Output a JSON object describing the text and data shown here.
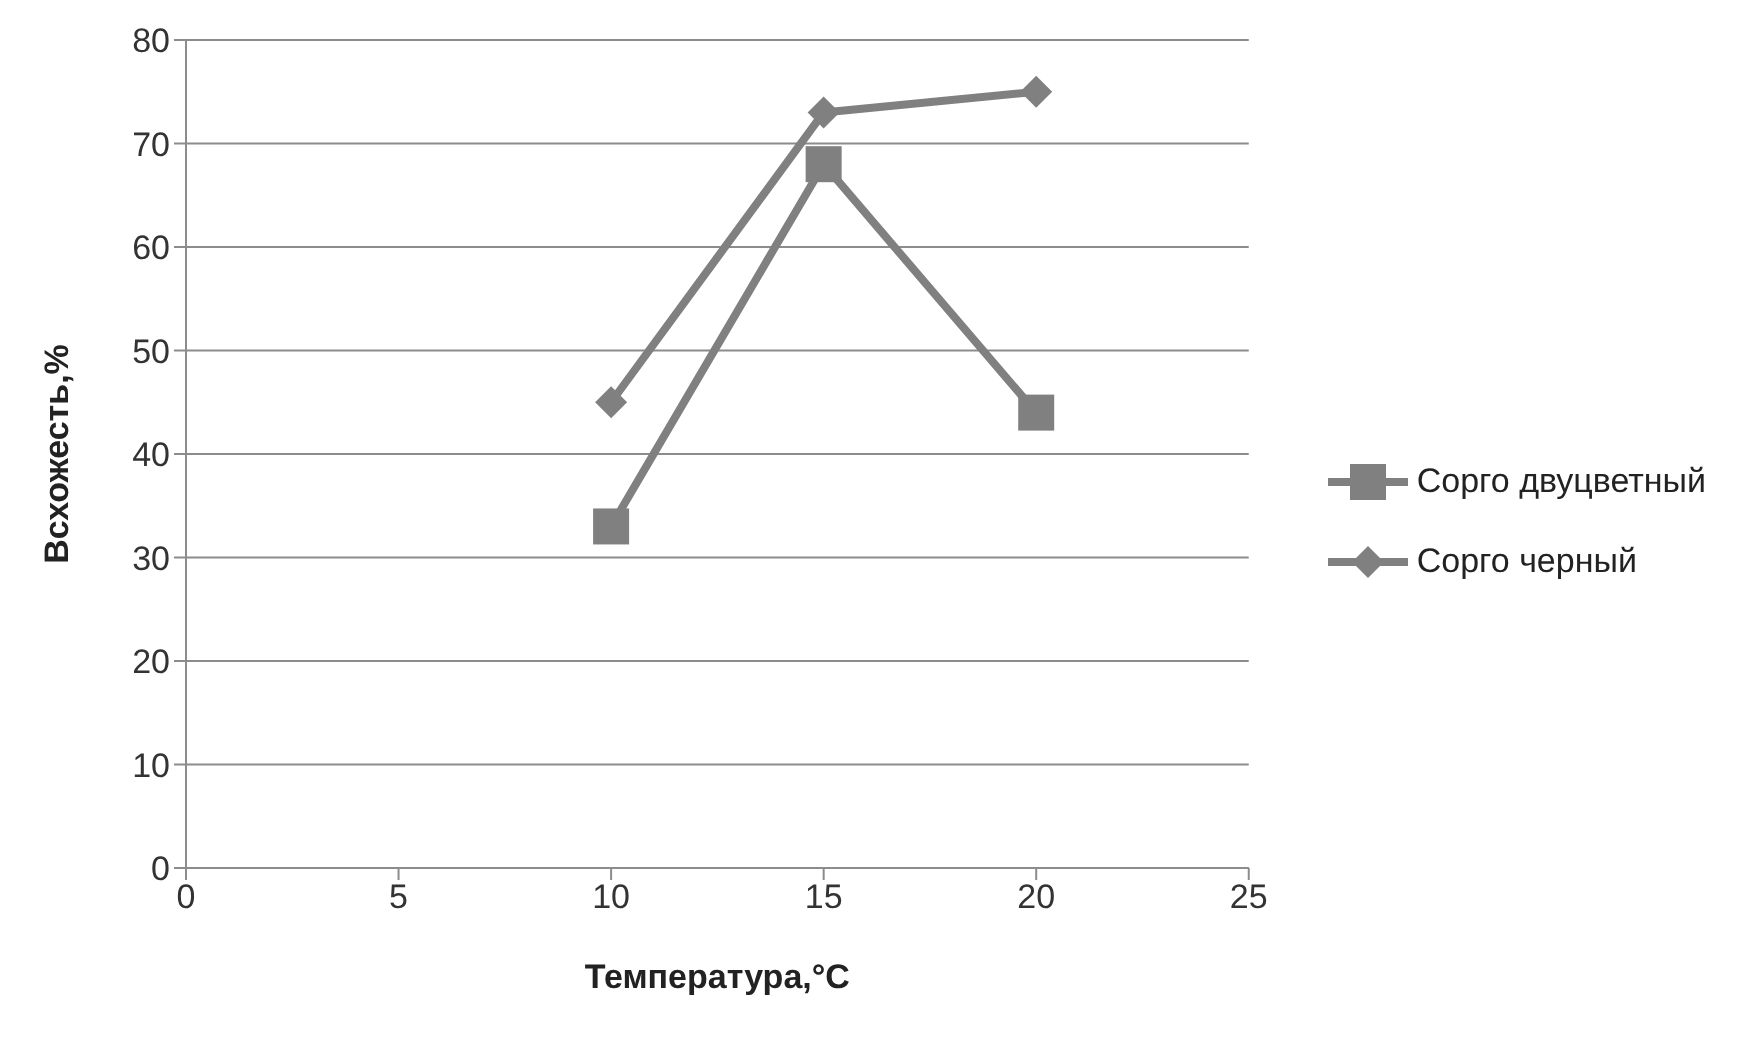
{
  "chart_data": {
    "type": "line",
    "xlabel": "Температура,°C",
    "ylabel": "Всхожесть,%",
    "x": [
      10,
      15,
      20
    ],
    "series": [
      {
        "name": "Сорго двуцветный",
        "color": "#808080",
        "values": [
          33,
          68,
          44
        ],
        "marker": "square"
      },
      {
        "name": "Сорго черный",
        "color": "#808080",
        "values": [
          45,
          73,
          75
        ],
        "marker": "diamond"
      }
    ],
    "xlim": [
      0,
      25
    ],
    "xticks": [
      0,
      5,
      10,
      15,
      20,
      25
    ],
    "ylim": [
      0,
      80
    ],
    "yticks": [
      0,
      10,
      20,
      30,
      40,
      50,
      60,
      70,
      80
    ],
    "grid": "y",
    "legend": "right",
    "line_style": "solid"
  }
}
